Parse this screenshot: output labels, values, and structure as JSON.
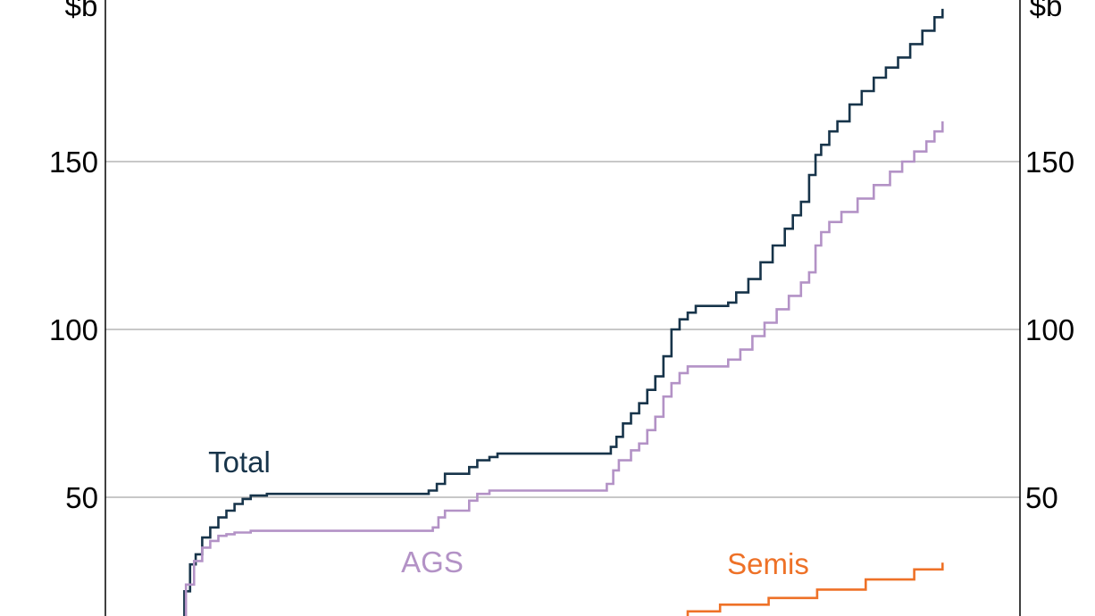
{
  "chart_data": {
    "type": "line",
    "unit_left": "$b",
    "unit_right": "$b",
    "y_ticks": [
      50,
      100,
      150
    ],
    "ylim": [
      13.5,
      196
    ],
    "xlim": [
      0,
      1000
    ],
    "grid": true,
    "colors": {
      "Total": "#17344a",
      "AGS": "#b392c6",
      "Semis": "#ee7127"
    },
    "series": [
      {
        "name": "Total",
        "points": [
          [
            30,
            14
          ],
          [
            38,
            22
          ],
          [
            45,
            30
          ],
          [
            52,
            33
          ],
          [
            60,
            38
          ],
          [
            70,
            41
          ],
          [
            80,
            44
          ],
          [
            90,
            46
          ],
          [
            100,
            48
          ],
          [
            110,
            49.5
          ],
          [
            120,
            50.5
          ],
          [
            140,
            51
          ],
          [
            220,
            51
          ],
          [
            300,
            51
          ],
          [
            330,
            51
          ],
          [
            340,
            52
          ],
          [
            350,
            54
          ],
          [
            360,
            57
          ],
          [
            380,
            57
          ],
          [
            390,
            59
          ],
          [
            400,
            61
          ],
          [
            415,
            62
          ],
          [
            425,
            63
          ],
          [
            450,
            63
          ],
          [
            520,
            63
          ],
          [
            560,
            63
          ],
          [
            565,
            65
          ],
          [
            572,
            68
          ],
          [
            580,
            72
          ],
          [
            590,
            75
          ],
          [
            600,
            78
          ],
          [
            610,
            82
          ],
          [
            620,
            86
          ],
          [
            630,
            92
          ],
          [
            640,
            100
          ],
          [
            650,
            103
          ],
          [
            660,
            105
          ],
          [
            670,
            107
          ],
          [
            700,
            107
          ],
          [
            710,
            108
          ],
          [
            720,
            111
          ],
          [
            735,
            115
          ],
          [
            750,
            120
          ],
          [
            765,
            125
          ],
          [
            780,
            130
          ],
          [
            790,
            134
          ],
          [
            800,
            138
          ],
          [
            810,
            146
          ],
          [
            818,
            152
          ],
          [
            825,
            155
          ],
          [
            835,
            159
          ],
          [
            845,
            162
          ],
          [
            860,
            167
          ],
          [
            875,
            171
          ],
          [
            890,
            175
          ],
          [
            905,
            178
          ],
          [
            920,
            181
          ],
          [
            935,
            185
          ],
          [
            950,
            189
          ],
          [
            965,
            193
          ],
          [
            975,
            195.5
          ]
        ]
      },
      {
        "name": "AGS",
        "points": [
          [
            30,
            14
          ],
          [
            40,
            24
          ],
          [
            50,
            31
          ],
          [
            60,
            35
          ],
          [
            70,
            37
          ],
          [
            80,
            38.5
          ],
          [
            90,
            39
          ],
          [
            100,
            39.5
          ],
          [
            120,
            40
          ],
          [
            200,
            40
          ],
          [
            340,
            40
          ],
          [
            345,
            41
          ],
          [
            352,
            44
          ],
          [
            360,
            46
          ],
          [
            380,
            46
          ],
          [
            390,
            49
          ],
          [
            400,
            51
          ],
          [
            415,
            52
          ],
          [
            500,
            52
          ],
          [
            555,
            52
          ],
          [
            560,
            54
          ],
          [
            568,
            58
          ],
          [
            575,
            61
          ],
          [
            590,
            64
          ],
          [
            600,
            66
          ],
          [
            610,
            70
          ],
          [
            620,
            74
          ],
          [
            630,
            80
          ],
          [
            640,
            84
          ],
          [
            650,
            87
          ],
          [
            660,
            89
          ],
          [
            700,
            89
          ],
          [
            710,
            91
          ],
          [
            725,
            94
          ],
          [
            740,
            98
          ],
          [
            755,
            102
          ],
          [
            770,
            106
          ],
          [
            785,
            110
          ],
          [
            800,
            114
          ],
          [
            810,
            117
          ],
          [
            818,
            125
          ],
          [
            825,
            129
          ],
          [
            835,
            132
          ],
          [
            850,
            135
          ],
          [
            870,
            139
          ],
          [
            890,
            143
          ],
          [
            910,
            147
          ],
          [
            925,
            150
          ],
          [
            940,
            153
          ],
          [
            955,
            156
          ],
          [
            965,
            159
          ],
          [
            975,
            162
          ]
        ]
      },
      {
        "name": "Semis",
        "points": [
          [
            640,
            13.5
          ],
          [
            660,
            16
          ],
          [
            700,
            18
          ],
          [
            760,
            20
          ],
          [
            820,
            22.5
          ],
          [
            880,
            25.5
          ],
          [
            940,
            28.5
          ],
          [
            975,
            30.5
          ]
        ]
      }
    ]
  }
}
